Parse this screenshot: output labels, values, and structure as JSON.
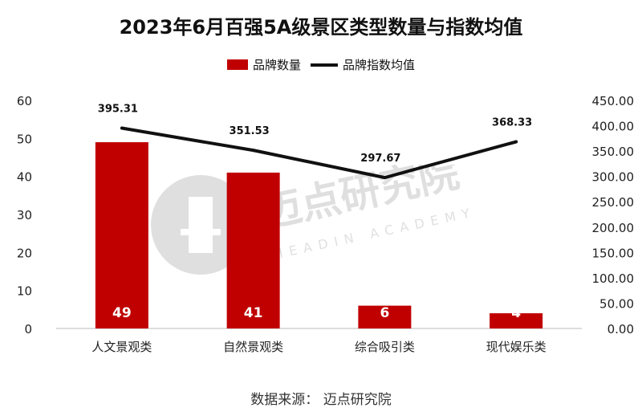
{
  "chart_data": {
    "type": "bar",
    "title": "2023年6月百强5A级景区类型数量与指数均值",
    "categories": [
      "人文景观类",
      "自然景观类",
      "综合吸引类",
      "现代娱乐类"
    ],
    "series": [
      {
        "name": "品牌数量",
        "type": "bar",
        "axis": "left",
        "values": [
          49,
          41,
          6,
          4
        ],
        "color": "#c00000"
      },
      {
        "name": "品牌指数均值",
        "type": "line",
        "axis": "right",
        "values": [
          395.31,
          351.53,
          297.67,
          368.33
        ],
        "color": "#111111"
      }
    ],
    "bar_labels": [
      "49",
      "41",
      "6",
      "4"
    ],
    "line_labels": [
      "395.31",
      "351.53",
      "297.67",
      "368.33"
    ],
    "y_left": {
      "ylim": [
        0,
        60
      ],
      "ticks": [
        "0",
        "10",
        "20",
        "30",
        "40",
        "50",
        "60"
      ]
    },
    "y_right": {
      "ylim": [
        0,
        450
      ],
      "ticks": [
        "0.00",
        "50.00",
        "100.00",
        "150.00",
        "200.00",
        "250.00",
        "300.00",
        "350.00",
        "400.00",
        "450.00"
      ]
    },
    "legend_placement": "top-center",
    "grid": false
  },
  "legend": {
    "bar_label": "品牌数量",
    "line_label": "品牌指数均值"
  },
  "watermark": {
    "text": "迈点研究院",
    "subtext": "MEADIN ACADEMY"
  },
  "source": "数据来源：  迈点研究院"
}
